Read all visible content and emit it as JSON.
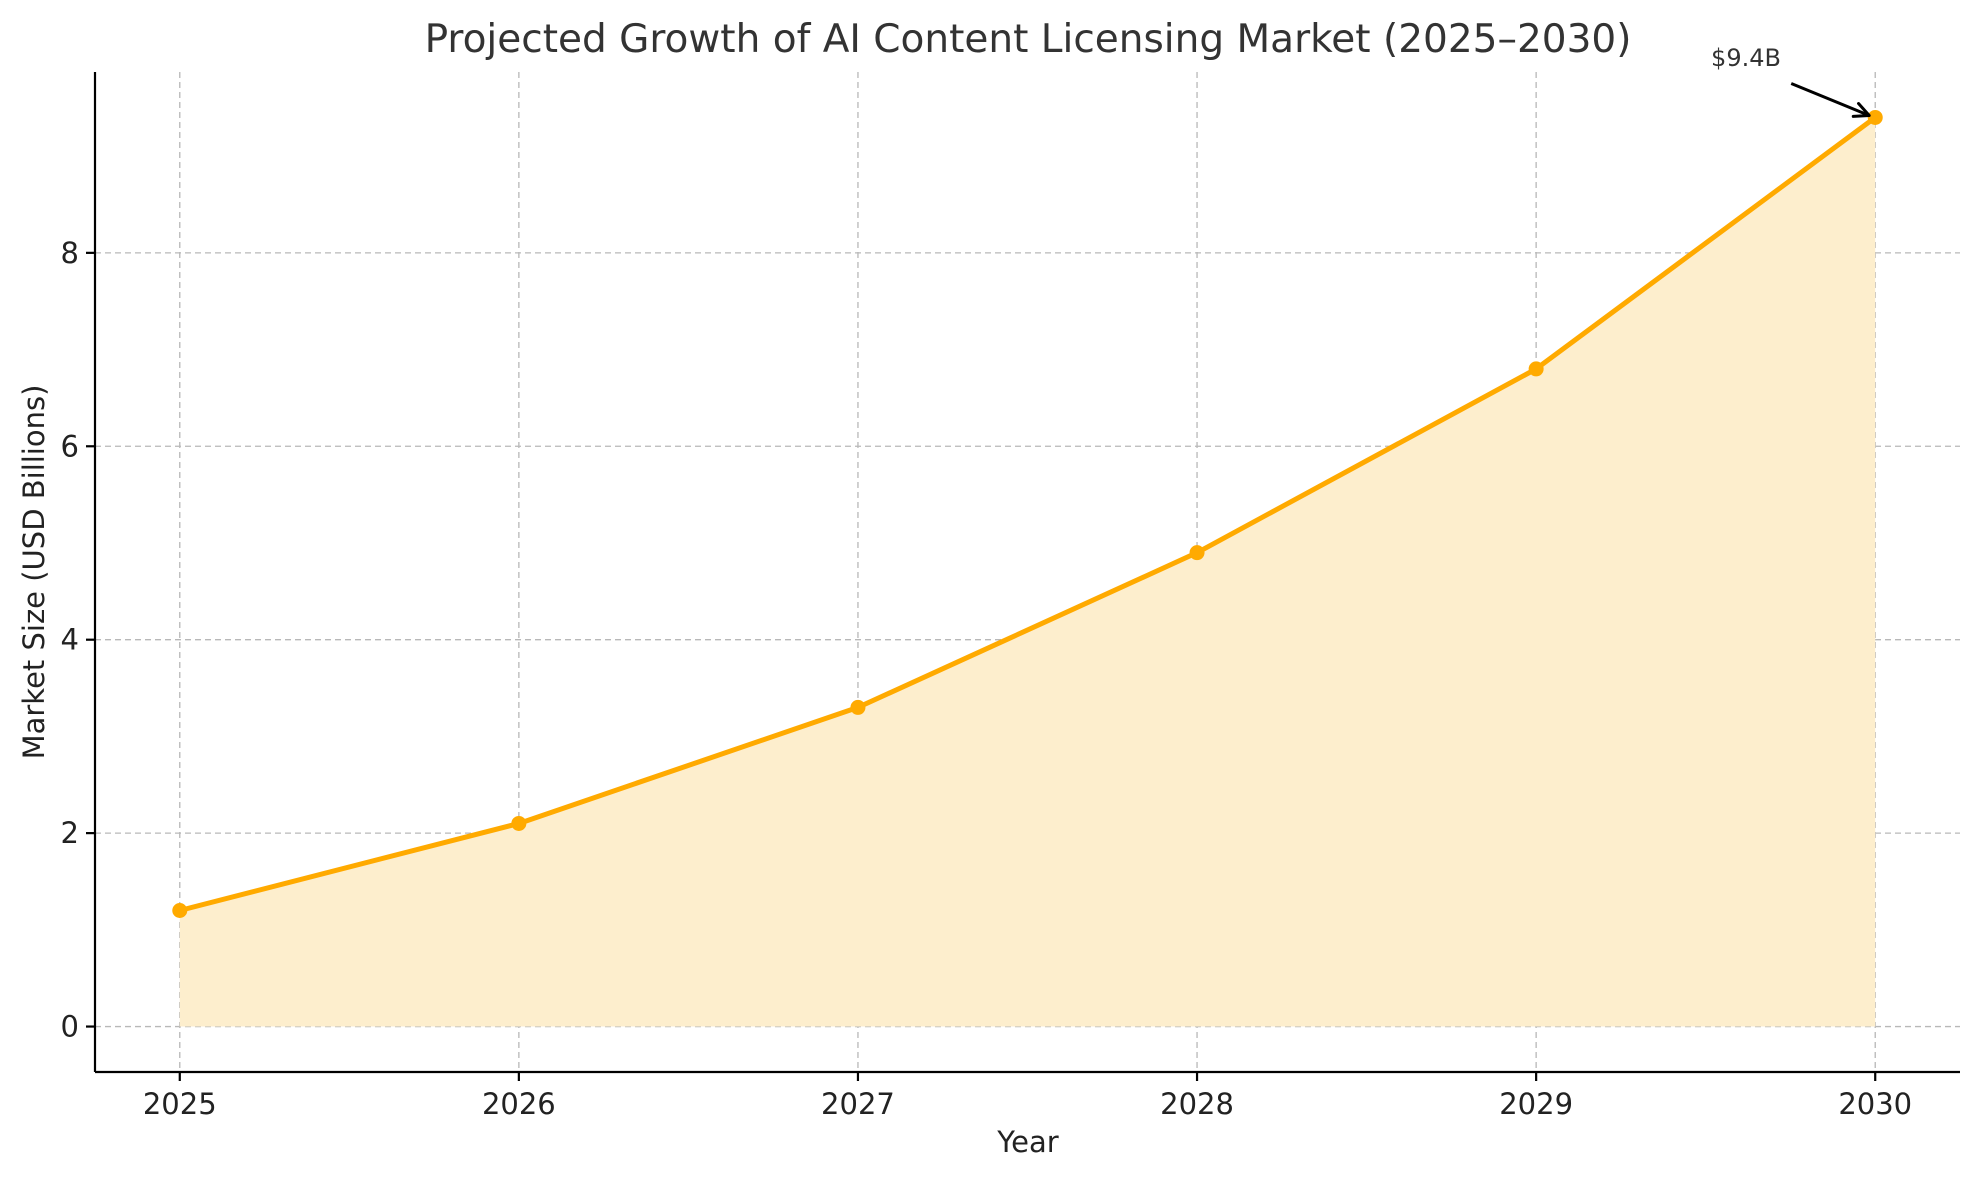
{
  "chart_data": {
    "type": "area",
    "title": "Projected Growth of AI Content Licensing Market (2025–2030)",
    "xlabel": "Year",
    "ylabel": "Market Size (USD Billions)",
    "x": [
      "2025",
      "2026",
      "2027",
      "2028",
      "2029",
      "2030"
    ],
    "series": [
      {
        "values": [
          1.2,
          2.1,
          3.3,
          4.9,
          6.8,
          9.4
        ]
      }
    ],
    "xlim": [
      2024.75,
      2030.25
    ],
    "ylim": [
      -0.47,
      9.87
    ],
    "yticks": [
      0,
      2,
      4,
      6,
      8
    ],
    "grid": true,
    "annotation": {
      "text": "$9.4B",
      "target_x": "2030",
      "target_y": 9.4
    },
    "colors": {
      "line": "#FFAA00",
      "fill": "#FDEECD",
      "grid": "#b8b8b8",
      "axis": "#000000",
      "text": "#333333"
    }
  }
}
